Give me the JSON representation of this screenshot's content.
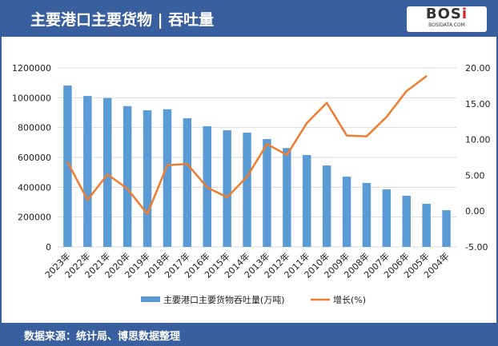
{
  "header": {
    "title": "主要港口主要货物 | 吞吐量"
  },
  "logo": {
    "text": "BOSi",
    "sub": "BOSIDATA.COM"
  },
  "footer": {
    "source": "数据来源：统计局、博思数据整理"
  },
  "colors": {
    "bar": "#5b9bd5",
    "line": "#ed7d31",
    "header": "#3a5f9e"
  },
  "chart_data": {
    "type": "bar+line",
    "title": "",
    "categories": [
      "2023年",
      "2022年",
      "2021年",
      "2020年",
      "2019年",
      "2018年",
      "2017年",
      "2016年",
      "2015年",
      "2014年",
      "2013年",
      "2012年",
      "2011年",
      "2010年",
      "2009年",
      "2008年",
      "2007年",
      "2006年",
      "2005年",
      "2004年"
    ],
    "series": [
      {
        "name": "主要港口主要货物吞吐量(万吨)",
        "type": "bar",
        "axis": "left",
        "values": [
          1082000,
          1012000,
          998000,
          944000,
          916000,
          923000,
          862000,
          809000,
          782000,
          766000,
          723000,
          663000,
          616000,
          546000,
          471000,
          429000,
          386000,
          343000,
          289000,
          246000
        ]
      },
      {
        "name": "增长(%)",
        "type": "line",
        "axis": "right",
        "values": [
          6.84,
          1.56,
          5.13,
          3.12,
          -0.4,
          6.43,
          6.58,
          3.31,
          1.93,
          4.8,
          9.37,
          7.84,
          12.3,
          15.13,
          10.56,
          10.45,
          13.16,
          16.77,
          18.85,
          null
        ]
      }
    ],
    "left_axis": {
      "min": 0,
      "max": 1200000,
      "ticks": [
        "0",
        "200000",
        "400000",
        "600000",
        "800000",
        "1000000",
        "1200000"
      ]
    },
    "right_axis": {
      "min": -5,
      "max": 20,
      "ticks": [
        "-5.00",
        "0.00",
        "5.00",
        "10.00",
        "15.00",
        "20.00"
      ]
    },
    "grid": true,
    "legend": "bottom"
  }
}
